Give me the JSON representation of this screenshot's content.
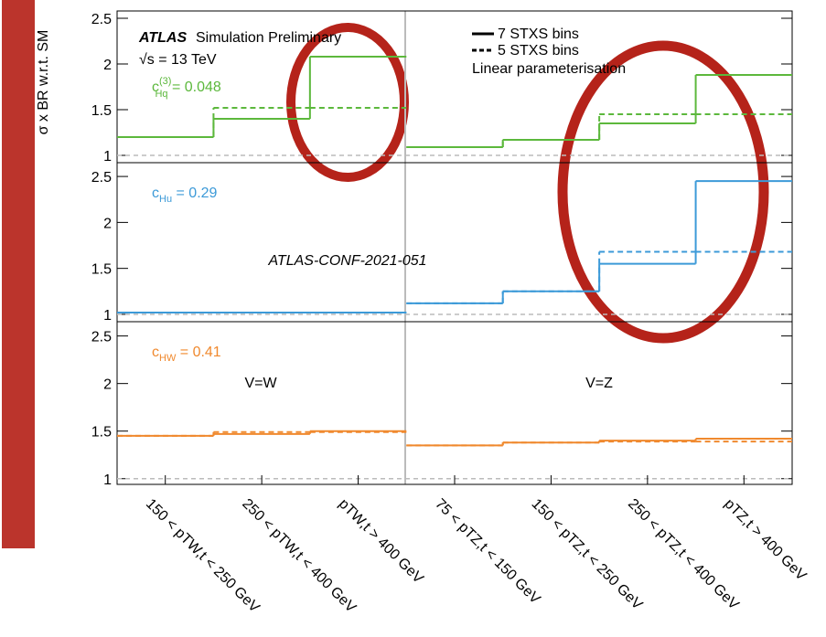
{
  "watermark": "ATLAS-CONF-2021-051",
  "chart_data": [
    {
      "type": "step",
      "title_bold": "ATLAS",
      "title": "Simulation Preliminary",
      "energy": "√s = 13 TeV",
      "y_label": "σ x BR w.r.t. SM",
      "legend": {
        "solid": "7 STXS bins",
        "dashed": "5 STXS bins",
        "note": "Linear parameterisation"
      },
      "coef": {
        "base": "c",
        "sub": "Hq",
        "sup": "(3)",
        "rest": " = 0.048"
      },
      "ylim": [
        0.92,
        2.58
      ],
      "yticks": [
        1,
        1.5,
        2,
        2.5
      ],
      "reference": 1,
      "series": [
        {
          "name": "7 STXS bins",
          "style": "solid",
          "color": "#5cb83c",
          "values": [
            1.2,
            1.4,
            2.08,
            1.09,
            1.17,
            1.35,
            1.88
          ]
        },
        {
          "name": "5 STXS bins",
          "style": "dashed",
          "color": "#5cb83c",
          "values": [
            1.2,
            1.52,
            1.52,
            1.09,
            1.17,
            1.45,
            1.45
          ]
        }
      ]
    },
    {
      "type": "step",
      "coef": {
        "base": "c",
        "sub": "Hu",
        "sup": "",
        "rest": " = 0.29"
      },
      "ylim": [
        0.92,
        2.65
      ],
      "yticks": [
        1,
        1.5,
        2,
        2.5
      ],
      "reference": 1,
      "series": [
        {
          "name": "7 STXS bins",
          "style": "solid",
          "color": "#3c9ad8",
          "values": [
            1.02,
            1.02,
            1.02,
            1.12,
            1.25,
            1.55,
            2.45
          ]
        },
        {
          "name": "5 STXS bins",
          "style": "dashed",
          "color": "#3c9ad8",
          "values": [
            1.02,
            1.02,
            1.02,
            1.12,
            1.25,
            1.68,
            1.68
          ]
        }
      ]
    },
    {
      "type": "step",
      "coef": {
        "base": "c",
        "sub": "HW",
        "sup": "",
        "rest": " = 0.41"
      },
      "annotations": [
        "V=W",
        "V=Z"
      ],
      "ylim": [
        0.94,
        2.65
      ],
      "yticks": [
        1,
        1.5,
        2,
        2.5
      ],
      "reference": 1,
      "categories": [
        "150 < pTW,t < 250 GeV",
        "250 < pTW,t < 400 GeV",
        "pTW,t > 400 GeV",
        "75 < pTZ,t < 150 GeV",
        "150 < pTZ,t < 250 GeV",
        "250 < pTZ,t < 400 GeV",
        "pTZ,t > 400 GeV"
      ],
      "series": [
        {
          "name": "7 STXS bins",
          "style": "solid",
          "color": "#f0892e",
          "values": [
            1.45,
            1.47,
            1.5,
            1.35,
            1.38,
            1.4,
            1.42
          ]
        },
        {
          "name": "5 STXS bins",
          "style": "dashed",
          "color": "#f0892e",
          "values": [
            1.45,
            1.49,
            1.49,
            1.35,
            1.38,
            1.39,
            1.39
          ]
        }
      ]
    }
  ]
}
